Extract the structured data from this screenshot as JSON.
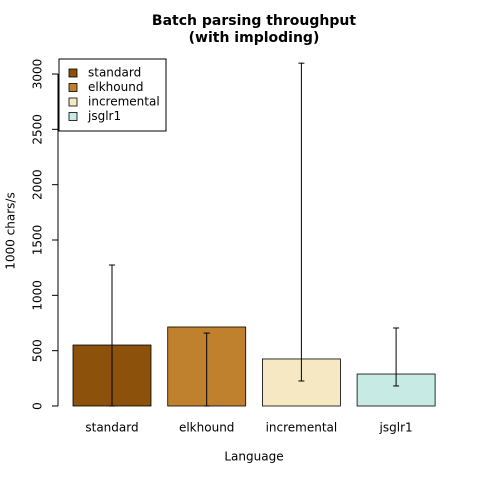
{
  "chart_data": {
    "type": "bar",
    "title": "Batch parsing throughput",
    "subtitle": "(with imploding)",
    "x_label": "Language",
    "y_label": "1000 chars/s",
    "categories": [
      "standard",
      "elkhound",
      "incremental",
      "jsglr1"
    ],
    "values": [
      551,
      714,
      425,
      289
    ],
    "error_low": [
      0,
      0,
      226,
      181
    ],
    "error_high": [
      1274,
      659,
      3098,
      705
    ],
    "colors": [
      "#8c510a",
      "#bf812d",
      "#f6e8c3",
      "#c7eae5"
    ],
    "ylim": [
      0,
      3000
    ],
    "yticks": [
      0,
      500,
      1000,
      1500,
      2000,
      2500,
      3000
    ],
    "legend": "top-left"
  }
}
